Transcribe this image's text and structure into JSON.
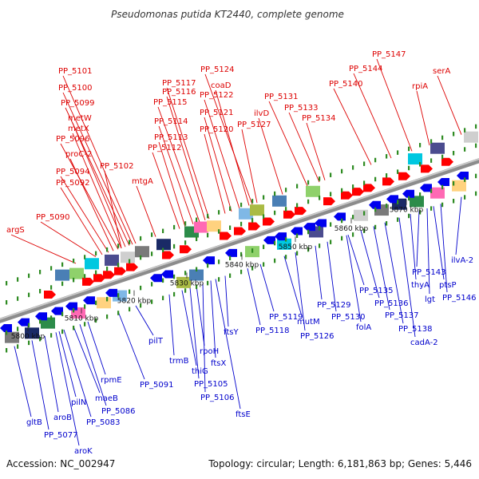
{
  "title": "Pseudomonas putida KT2440, complete genome",
  "footer": {
    "accession": "Accession: NC_002947",
    "summary": "Topology: circular; Length: 6,181,863 bp; Genes: 5,446"
  },
  "colors": {
    "forward_label": "#dd0000",
    "reverse_label": "#0000cc",
    "forward_arrow": "#ff0000",
    "reverse_arrow": "#0000ee",
    "backbone": "#8c8c8c",
    "tick": "#2e8b22"
  },
  "scale_ticks": [
    "5800 kbp",
    "5810 kbp",
    "5820 kbp",
    "5830 kbp",
    "5840 kbp",
    "5850 kbp",
    "5860 kbp",
    "5870 kbp"
  ],
  "forward_genes": [
    "argS",
    "PP_5090",
    "PP_5092",
    "PP_5094",
    "proC-2",
    "PP_5096",
    "metX",
    "metW",
    "PP_5099",
    "PP_5100",
    "PP_5101",
    "PP_5102",
    "mtgA",
    "PP_5112",
    "PP_5113",
    "PP_5114",
    "PP_5115",
    "PP_5116",
    "PP_5117",
    "PP_5120",
    "PP_5121",
    "PP_5122",
    "coaD",
    "PP_5124",
    "PP_5127",
    "ilvD",
    "PP_5131",
    "PP_5133",
    "PP_5134",
    "PP_5140",
    "PP_5144",
    "PP_5147",
    "rpiA",
    "serA"
  ],
  "reverse_genes": [
    "gltB",
    "PP_5077",
    "aroB",
    "aroK",
    "pilN",
    "PP_5083",
    "maeB",
    "PP_5086",
    "rpmE",
    "PP_5091",
    "pilT",
    "trmB",
    "thiG",
    "PP_5105",
    "rpoH",
    "PP_5106",
    "ftsX",
    "ftsE",
    "ftsY",
    "PP_5118",
    "PP_5119",
    "mutM",
    "PP_5126",
    "PP_5129",
    "PP_5130",
    "folA",
    "PP_5135",
    "PP_5136",
    "PP_5137",
    "PP_5138",
    "cadA-2",
    "thyA",
    "PP_5143",
    "lgt",
    "ptsP",
    "PP_5146",
    "ilvA-2"
  ]
}
